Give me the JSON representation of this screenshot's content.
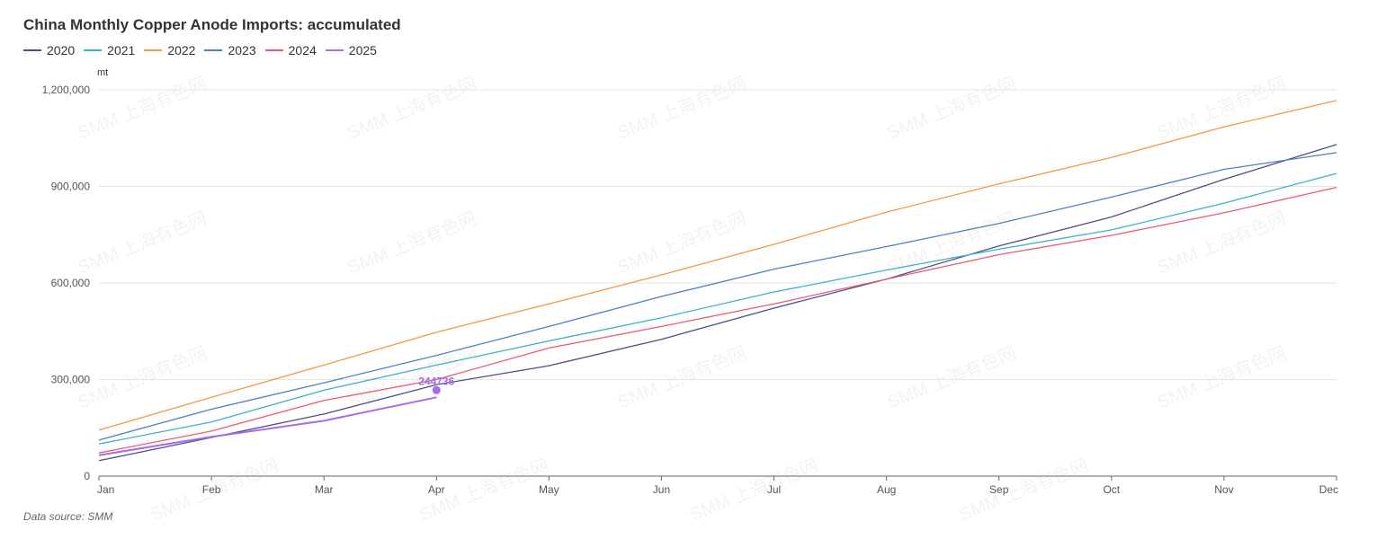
{
  "title": "China Monthly Copper Anode Imports:  accumulated",
  "footer": "Data source:  SMM",
  "watermark": "SMM 上海有色网",
  "chart_data": {
    "type": "line",
    "title": "China Monthly Copper Anode Imports:  accumulated",
    "ylabel": "mt",
    "xlabel": "",
    "categories": [
      "Jan",
      "Feb",
      "Mar",
      "Apr",
      "May",
      "Jun",
      "Jul",
      "Aug",
      "Sep",
      "Oct",
      "Nov",
      "Dec"
    ],
    "ylim": [
      0,
      1200000
    ],
    "yticks": [
      0,
      300000,
      600000,
      900000,
      1200000
    ],
    "ytick_labels": [
      "0",
      "300,000",
      "600,000",
      "900,000",
      "1,200,000"
    ],
    "grid": true,
    "legend_position": "top-left",
    "series": [
      {
        "name": "2020",
        "color": "#4a4f8c",
        "values": [
          48000,
          120000,
          193000,
          284000,
          343000,
          425000,
          522000,
          612000,
          715000,
          805000,
          922000,
          1030000
        ]
      },
      {
        "name": "2021",
        "color": "#3fb0c8",
        "values": [
          100000,
          168000,
          267000,
          345000,
          420000,
          492000,
          572000,
          640000,
          705000,
          765000,
          848000,
          940000
        ]
      },
      {
        "name": "2022",
        "color": "#f09a4a",
        "values": [
          143000,
          245000,
          345000,
          447000,
          535000,
          625000,
          720000,
          820000,
          908000,
          990000,
          1085000,
          1167000
        ]
      },
      {
        "name": "2023",
        "color": "#4a82c4",
        "values": [
          112000,
          208000,
          290000,
          375000,
          465000,
          558000,
          643000,
          713000,
          785000,
          867000,
          953000,
          1005000
        ]
      },
      {
        "name": "2024",
        "color": "#ee5a6f",
        "values": [
          72000,
          140000,
          235000,
          300000,
          398000,
          465000,
          535000,
          612000,
          688000,
          748000,
          818000,
          897000
        ]
      },
      {
        "name": "2025",
        "color": "#a76bf0",
        "values": [
          65000,
          122000,
          172000,
          244736,
          null,
          null,
          null,
          null,
          null,
          null,
          null,
          null
        ]
      }
    ],
    "annotations": [
      {
        "series": "2025",
        "category": "Apr",
        "value": 244736,
        "label": "244736"
      }
    ]
  }
}
